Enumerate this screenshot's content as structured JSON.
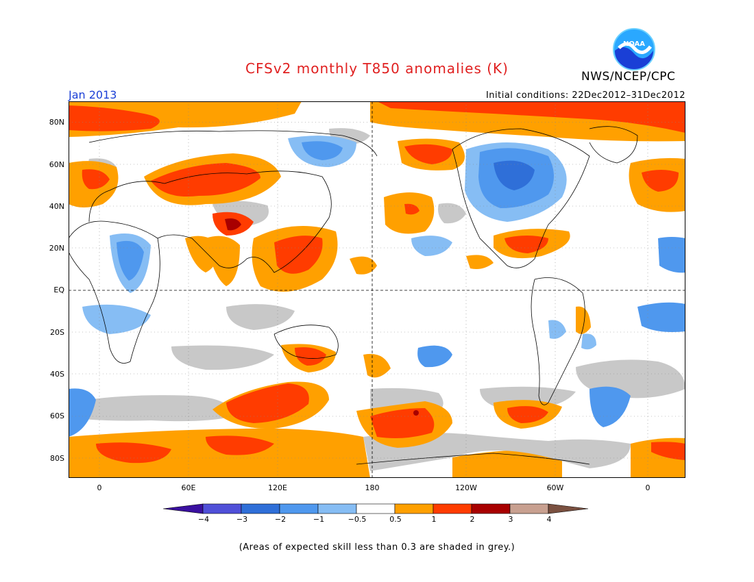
{
  "title": "CFSv2 monthly T850 anomalies (K)",
  "org": "NWS/NCEP/CPC",
  "logo_text": "NOAA",
  "month": "Jan 2013",
  "initial_conditions": "Initial conditions: 22Dec2012–31Dec2012",
  "footnote": "(Areas of expected skill less than 0.3 are shaded in grey.)",
  "lat_labels": [
    "80N",
    "60N",
    "40N",
    "20N",
    "EQ",
    "20S",
    "40S",
    "60S",
    "80S"
  ],
  "lon_labels": [
    "0",
    "60E",
    "120E",
    "180",
    "120W",
    "60W",
    "0"
  ],
  "colorbar": {
    "labels": [
      "−4",
      "−3",
      "−2",
      "−1",
      "−0.5",
      "0.5",
      "1",
      "2",
      "3",
      "4"
    ],
    "colors": [
      "#3a10a0",
      "#5050d8",
      "#2f6fd8",
      "#4f98ee",
      "#86bdf4",
      "#ffffff",
      "#ffa000",
      "#ff3c00",
      "#a80000",
      "#c8a090",
      "#7a5040"
    ]
  },
  "colors": {
    "orange": "#ffa000",
    "red": "#ff3c00",
    "darkred": "#a80000",
    "pink": "#c8a090",
    "lightblue": "#86bdf4",
    "blue": "#4f98ee",
    "midblue": "#2f6fd8",
    "grey": "#c8c8c8",
    "title_red": "#e02020",
    "month_blue": "#1a3fd6"
  }
}
